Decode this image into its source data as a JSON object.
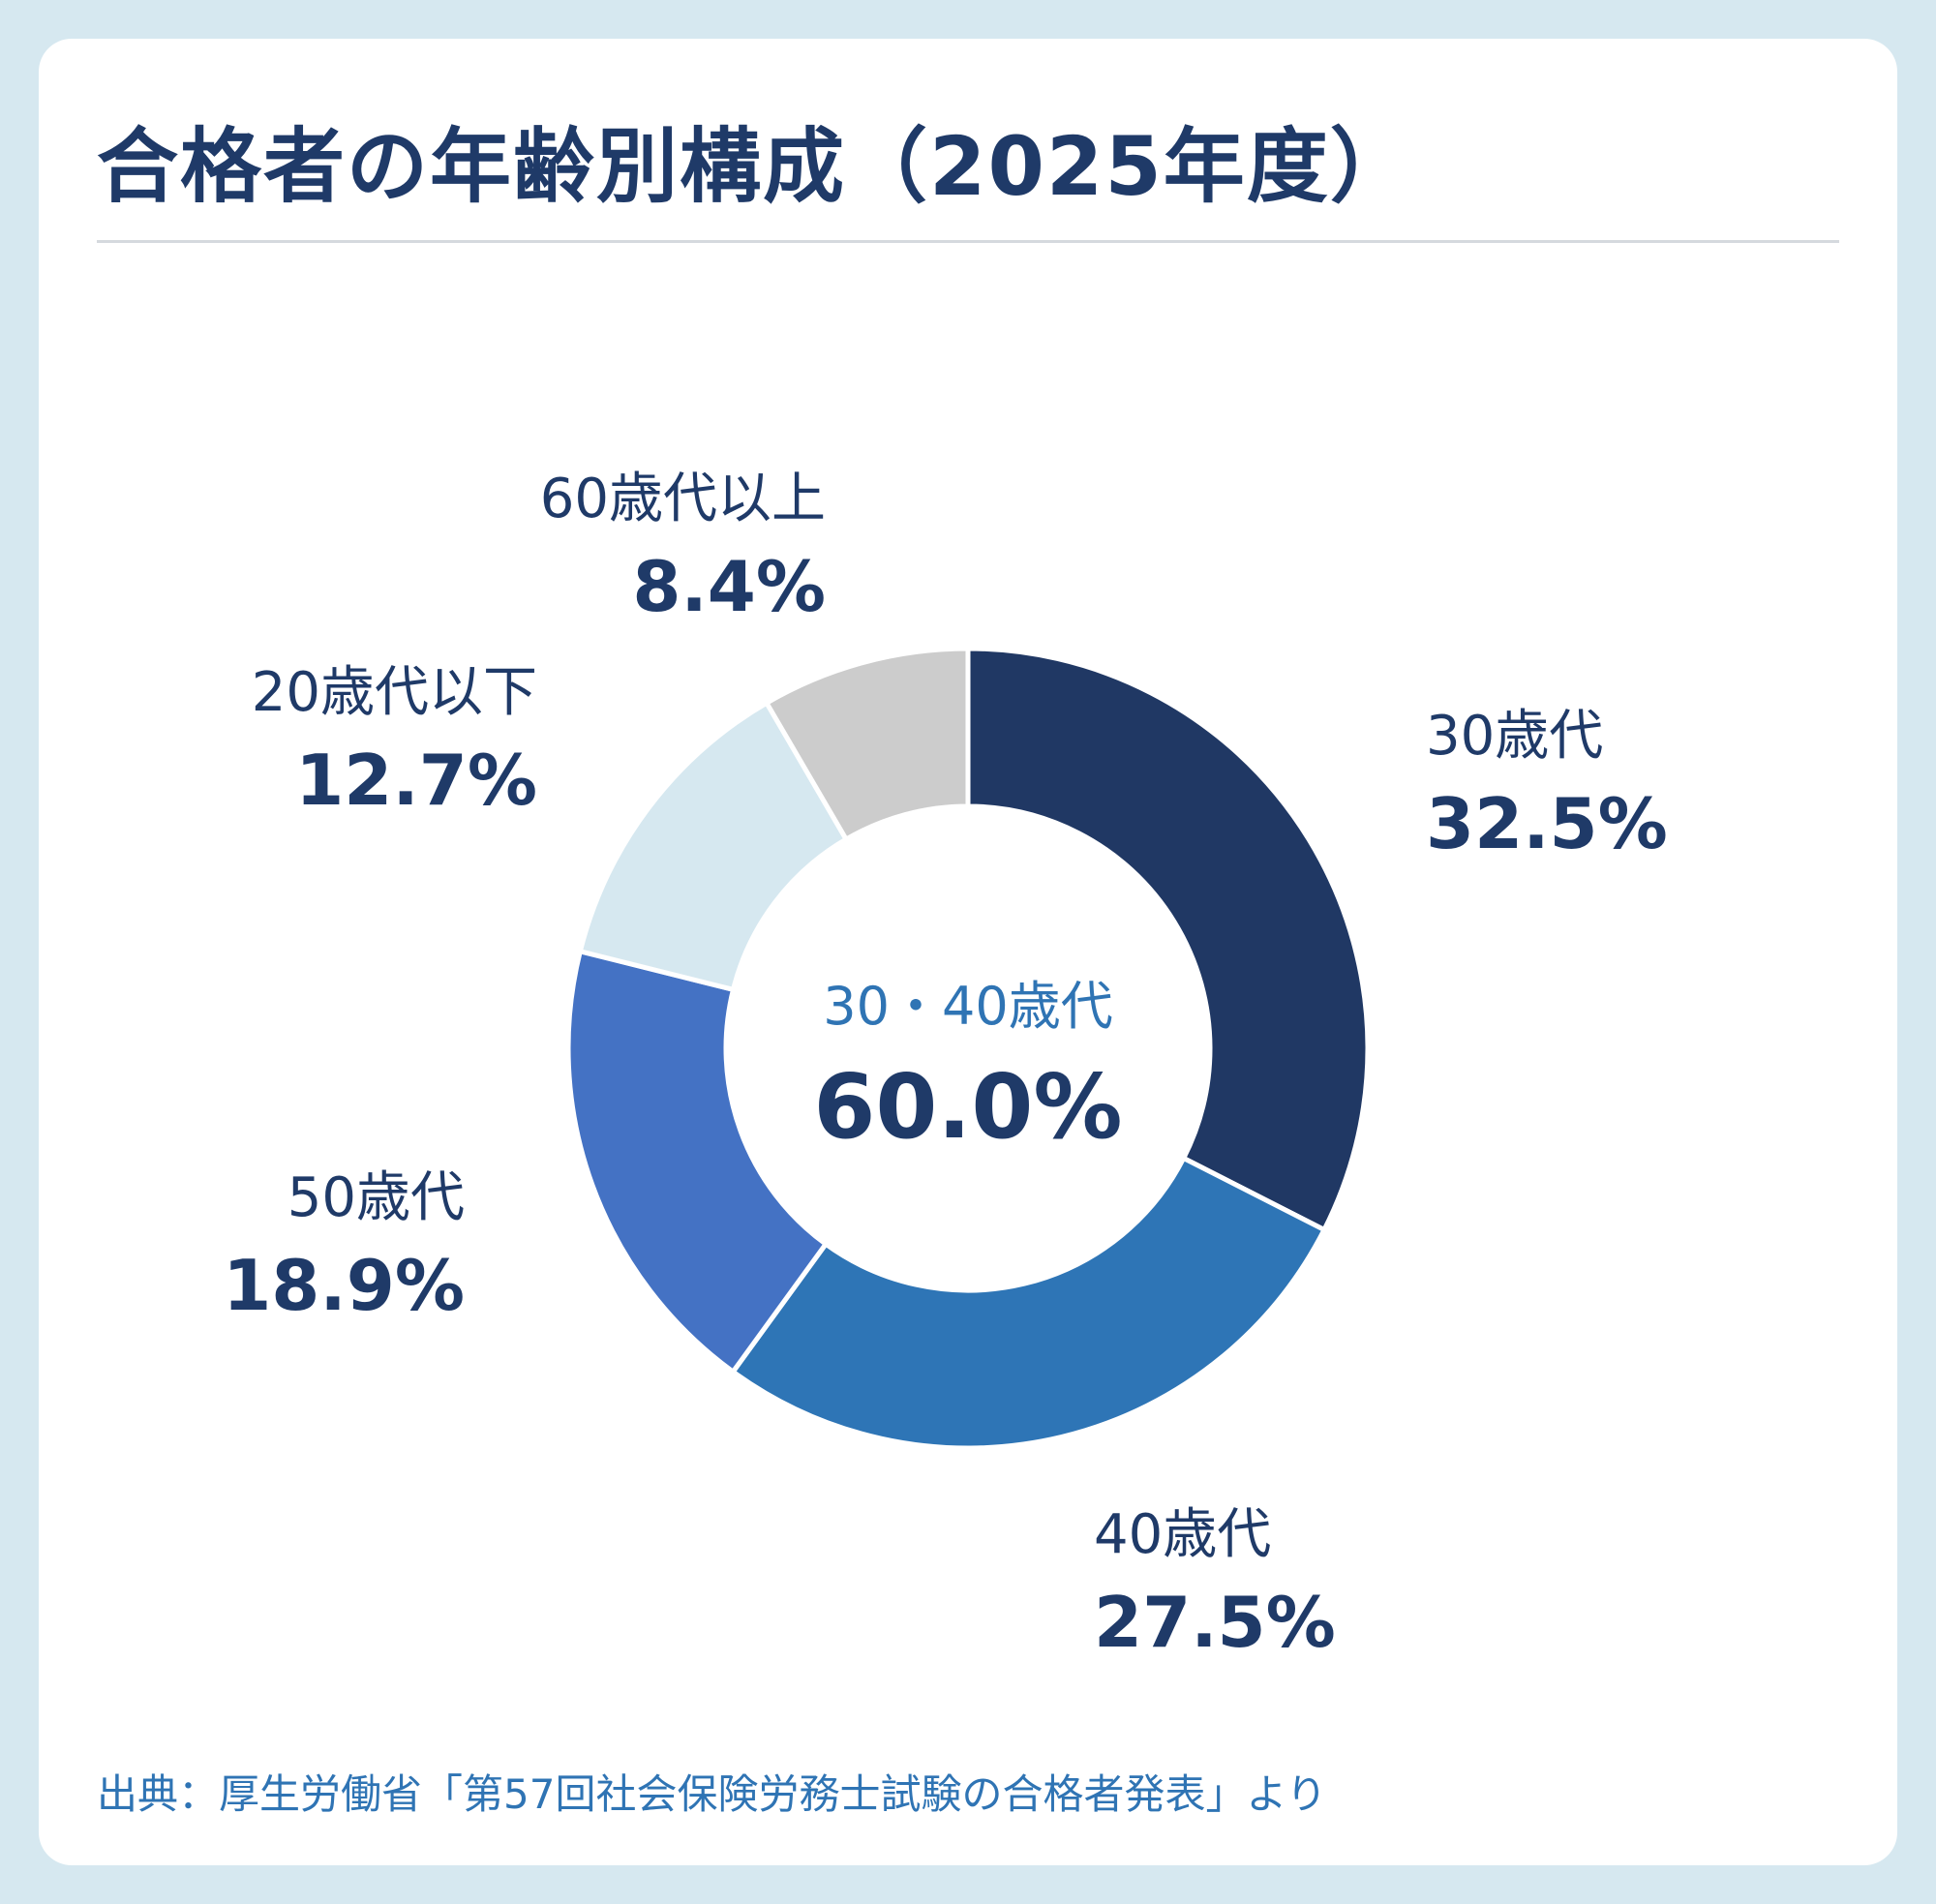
{
  "title": "合格者の年齢別構成（2025年度）",
  "chart_data": {
    "type": "pie",
    "style": "donut",
    "slices": [
      {
        "label": "30歳代",
        "value": 32.5,
        "display": "32.5%",
        "color": "#203864"
      },
      {
        "label": "40歳代",
        "value": 27.5,
        "display": "27.5%",
        "color": "#2e75b6"
      },
      {
        "label": "50歳代",
        "value": 18.9,
        "display": "18.9%",
        "color": "#4472c4"
      },
      {
        "label": "20歳代以下",
        "value": 12.7,
        "display": "12.7%",
        "color": "#d6e8f0"
      },
      {
        "label": "60歳代以上",
        "value": 8.4,
        "display": "8.4%",
        "color": "#cccccc"
      }
    ],
    "center": {
      "label": "30・40歳代",
      "value": "60.0%"
    }
  },
  "source": "出典：厚生労働省「第57回社会保険労務士試験の合格者発表」より"
}
